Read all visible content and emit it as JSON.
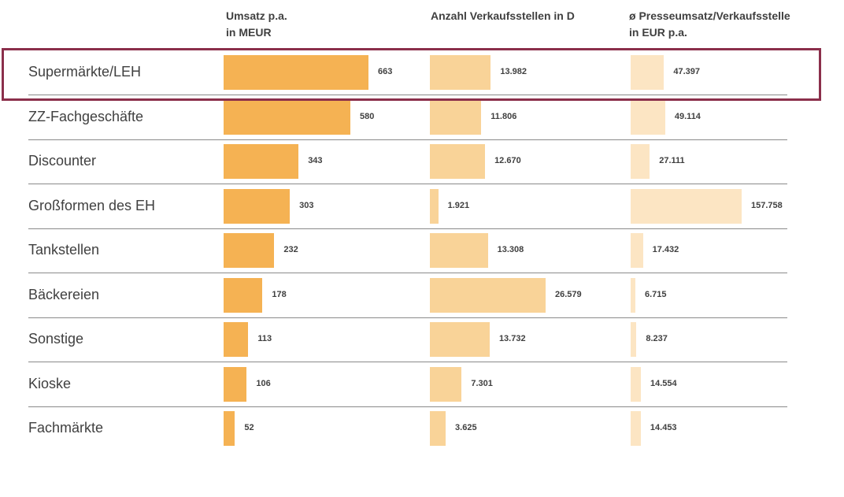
{
  "chart_data": {
    "type": "bar",
    "orientation": "horizontal",
    "panels": [
      {
        "header_line1": "Umsatz p.a.",
        "header_line2": "in MEUR",
        "color": "#f5b253"
      },
      {
        "header_line1": "Anzahl Verkaufsstellen in D",
        "header_line2": "",
        "color": "#f9d398"
      },
      {
        "header_line1": "ø Presseumsatz/Verkaufsstelle",
        "header_line2": "in EUR p.a.",
        "color": "#fce5c3"
      }
    ],
    "categories": [
      "Supermärkte/LEH",
      "ZZ-Fachgeschäfte",
      "Discounter",
      "Großformen des EH",
      "Tankstellen",
      "Bäckereien",
      "Sonstige",
      "Kioske",
      "Fachmärkte"
    ],
    "series": [
      {
        "name": "Umsatz p.a. in MEUR",
        "values": [
          663,
          580,
          343,
          303,
          232,
          178,
          113,
          106,
          52
        ],
        "labels": [
          "663",
          "580",
          "343",
          "303",
          "232",
          "178",
          "113",
          "106",
          "52"
        ]
      },
      {
        "name": "Anzahl Verkaufsstellen in D",
        "values": [
          13982,
          11806,
          12670,
          1921,
          13308,
          26579,
          13732,
          7301,
          3625
        ],
        "labels": [
          "13.982",
          "11.806",
          "12.670",
          "1.921",
          "13.308",
          "26.579",
          "13.732",
          "7.301",
          "3.625"
        ]
      },
      {
        "name": "ø Presseumsatz/Verkaufsstelle in EUR p.a.",
        "values": [
          47397,
          49114,
          27111,
          157758,
          17432,
          6715,
          8237,
          14554,
          14453
        ],
        "labels": [
          "47.397",
          "49.114",
          "27.111",
          "157.758",
          "17.432",
          "6.715",
          "8.237",
          "14.554",
          "14.453"
        ]
      }
    ],
    "highlighted_category": "Supermärkte/LEH",
    "highlight_color": "#8b2f4b"
  }
}
